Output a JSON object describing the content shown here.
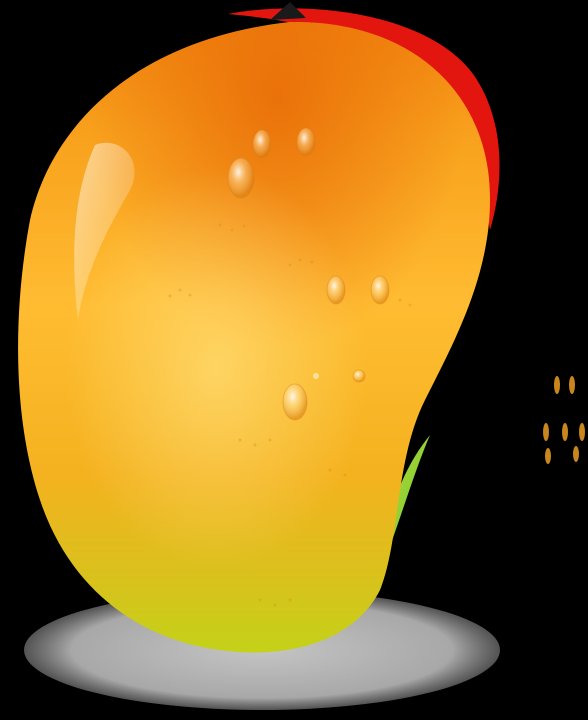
{
  "illustration": {
    "subject": "mango-icon",
    "colors": {
      "background": "#000000",
      "body_top": "#f07d10",
      "body_mid": "#ffb52a",
      "body_bottom": "#c8d41a",
      "blush": "#e2160e",
      "leaf": "#8fd22a",
      "stem": "#1a1a1a",
      "shadow": "#b5b5b5",
      "seed_flecks": "#c8861c"
    }
  }
}
